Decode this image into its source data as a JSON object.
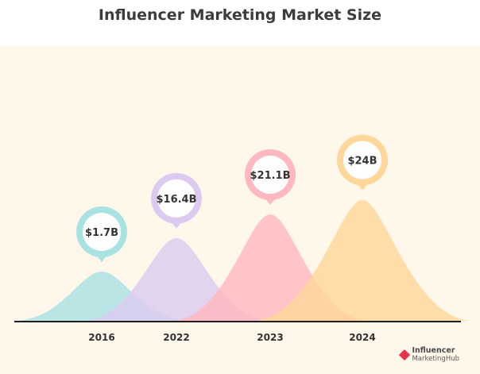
{
  "chart_data": {
    "type": "area",
    "title": "Influencer Marketing Market Size",
    "categories": [
      "2016",
      "2022",
      "2023",
      "2024"
    ],
    "values": [
      1.7,
      16.4,
      21.1,
      24
    ],
    "value_labels": [
      "$1.7B",
      "$16.4B",
      "$21.1B",
      "$24B"
    ],
    "colors": [
      "#a9e2e3",
      "#dccaf0",
      "#ffb8bf",
      "#ffd79a"
    ],
    "background": "#fff7ea",
    "grid": false
  },
  "brand": {
    "line1": "Influencer",
    "line2": "MarketingHub"
  }
}
